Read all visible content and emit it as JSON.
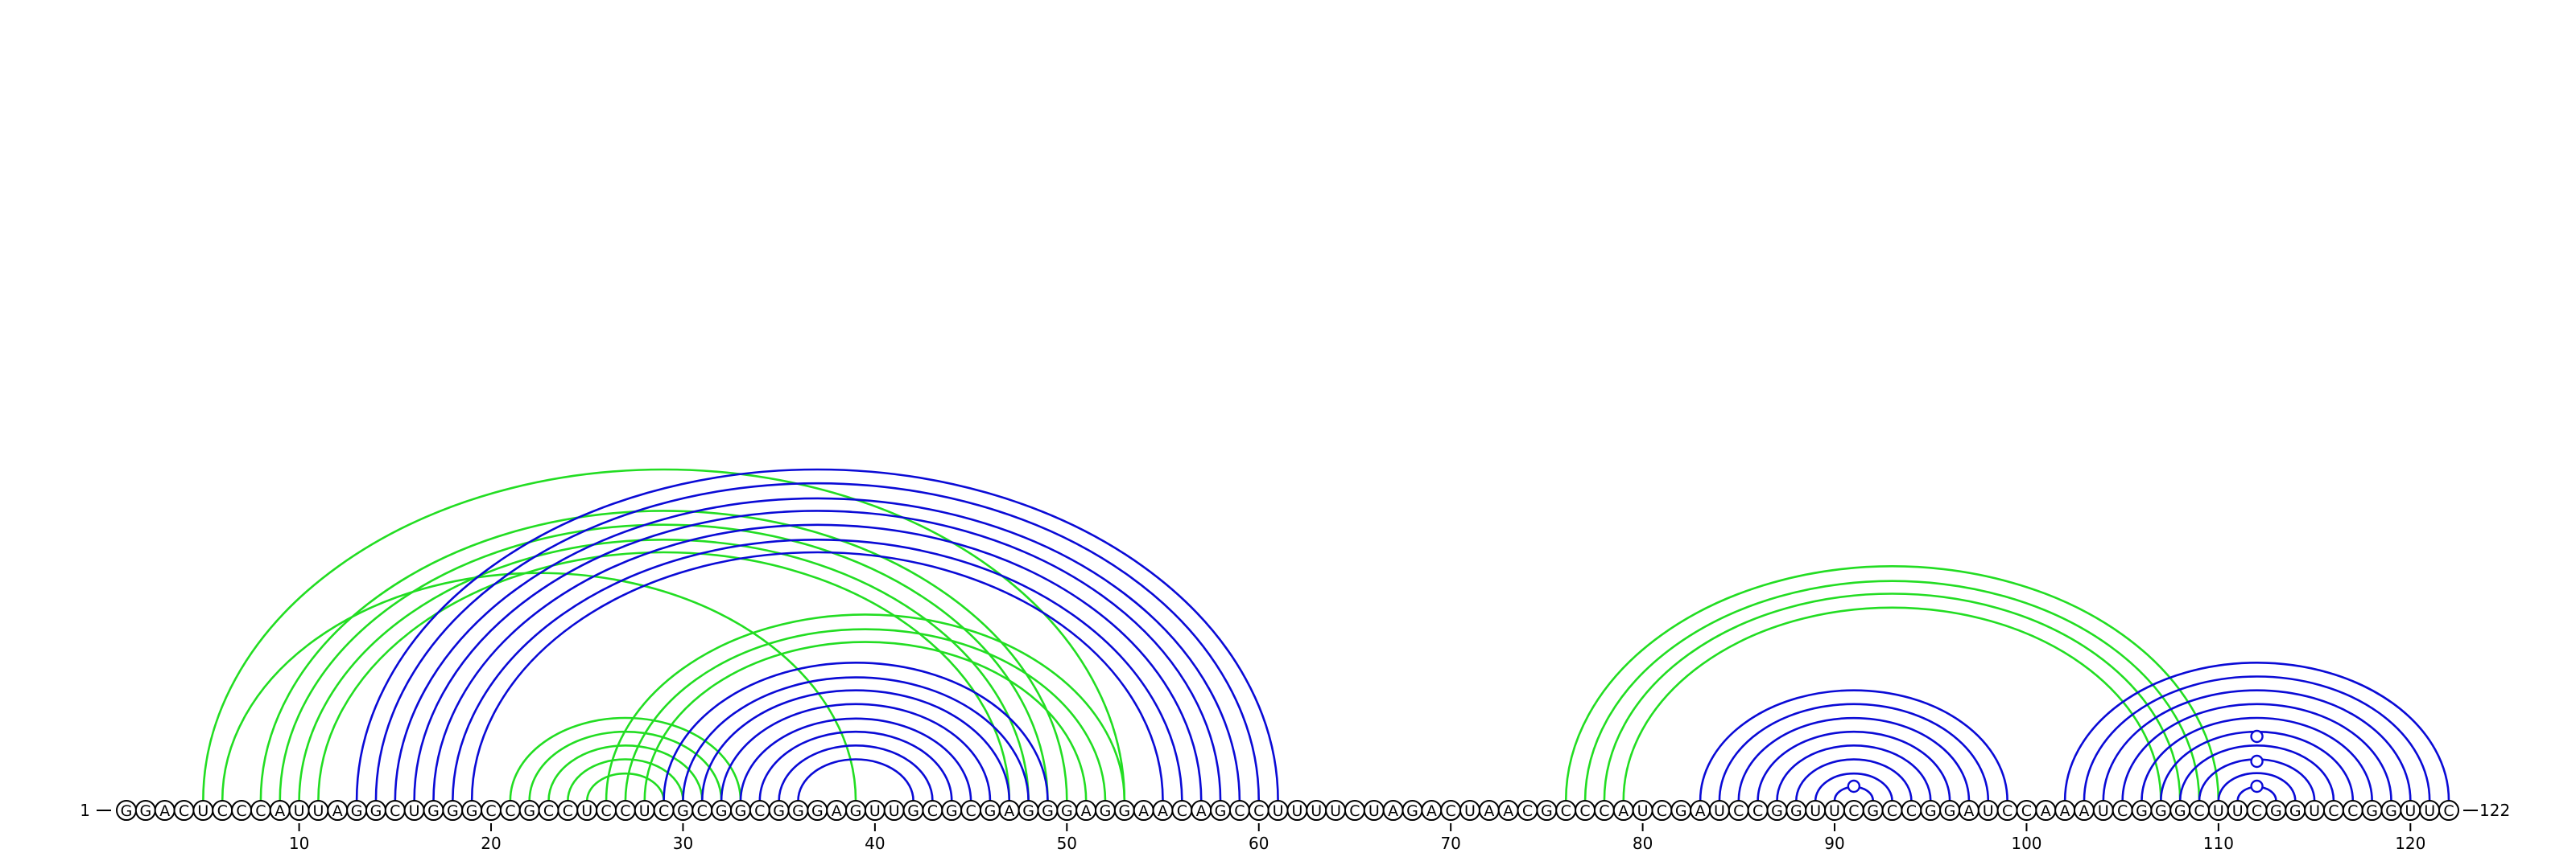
{
  "sequence": "GGACUCCCAUUAGGCUGGGCCGCCUCCUCGCGGCGGGAGUUGCGCGAGGGAGGAACAGCCUUUUCUAGACUAACGCCCAUCGAUCCGGUUCGCCGGAUCCAAAUCGGGCUUCGGUCCGGUUC",
  "start_label": "1",
  "end_label": "122",
  "tick_labels": [
    "10",
    "20",
    "30",
    "40",
    "50",
    "60",
    "70",
    "80",
    "90",
    "100",
    "110",
    "120"
  ],
  "colors": {
    "blue": "#0a0ad6",
    "green": "#22dd22",
    "text": "#000000"
  },
  "arc_groups": [
    {
      "color": "green",
      "above": true,
      "pairs": [
        [
          5,
          53
        ],
        [
          8,
          50
        ],
        [
          9,
          49
        ],
        [
          10,
          48
        ],
        [
          11,
          47
        ],
        [
          6,
          39
        ]
      ]
    },
    {
      "color": "blue",
      "above": true,
      "pairs": [
        [
          13,
          61
        ],
        [
          14,
          60
        ],
        [
          15,
          59
        ],
        [
          16,
          58
        ],
        [
          17,
          57
        ],
        [
          18,
          56
        ],
        [
          19,
          55
        ]
      ]
    },
    {
      "color": "green",
      "above": true,
      "pairs": [
        [
          21,
          33
        ],
        [
          22,
          32
        ],
        [
          23,
          31
        ],
        [
          24,
          30
        ],
        [
          25,
          29
        ]
      ]
    },
    {
      "color": "green",
      "above": true,
      "pairs": [
        [
          26,
          53
        ],
        [
          27,
          52
        ],
        [
          28,
          51
        ]
      ]
    },
    {
      "color": "blue",
      "above": true,
      "pairs": [
        [
          29,
          49
        ],
        [
          30,
          48
        ],
        [
          31,
          47
        ],
        [
          32,
          46
        ],
        [
          33,
          45
        ],
        [
          34,
          44
        ],
        [
          35,
          43
        ],
        [
          36,
          42
        ]
      ]
    },
    {
      "color": "green",
      "above": true,
      "pairs": [
        [
          76,
          110
        ],
        [
          77,
          109
        ],
        [
          78,
          108
        ],
        [
          79,
          107
        ]
      ]
    },
    {
      "color": "blue",
      "above": true,
      "pairs": [
        [
          83,
          99
        ],
        [
          84,
          98
        ],
        [
          85,
          97
        ],
        [
          86,
          96
        ],
        [
          87,
          95
        ],
        [
          88,
          94
        ],
        [
          89,
          93
        ],
        [
          90,
          92
        ]
      ]
    },
    {
      "color": "blue",
      "above": true,
      "pairs": [
        [
          102,
          122
        ],
        [
          103,
          121
        ],
        [
          104,
          120
        ],
        [
          105,
          119
        ],
        [
          106,
          118
        ],
        [
          107,
          117
        ],
        [
          108,
          116
        ],
        [
          109,
          115
        ],
        [
          110,
          114
        ],
        [
          111,
          113
        ]
      ]
    }
  ],
  "markers": [
    {
      "color": "blue",
      "position": 91
    },
    {
      "color": "blue",
      "position": 112
    },
    {
      "color": "blue",
      "position": 112
    },
    {
      "color": "blue",
      "position": 112
    }
  ]
}
